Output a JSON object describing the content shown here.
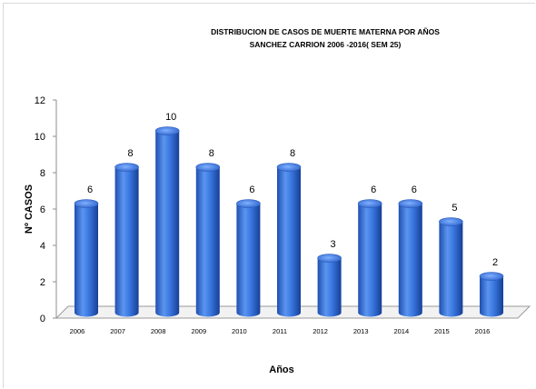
{
  "chart_data": {
    "type": "bar",
    "title_lines": [
      "DISTRIBUCION DE CASOS DE MUERTE MATERNA POR AÑOS",
      "SANCHEZ CARRION 2006 -2016( SEM 25)"
    ],
    "xlabel": "Años",
    "ylabel": "Nº CASOS",
    "categories": [
      "2006",
      "2007",
      "2008",
      "2009",
      "2010",
      "2011",
      "2012",
      "2013",
      "2014",
      "2015",
      "2016"
    ],
    "values": [
      6,
      8,
      10,
      8,
      6,
      8,
      3,
      6,
      6,
      5,
      2
    ],
    "data_labels": [
      "6",
      "8",
      "10",
      "8",
      "6",
      "8",
      "3",
      "6",
      "6",
      "5",
      "2"
    ],
    "ylim": [
      0,
      12
    ],
    "yticks": [
      "0",
      "2",
      "4",
      "6",
      "8",
      "10",
      "12"
    ],
    "grid": false,
    "legend": "none",
    "bar_color": "#2e6ad6"
  }
}
